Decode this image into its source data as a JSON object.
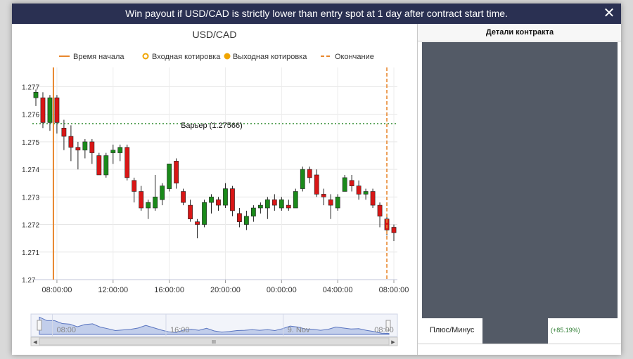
{
  "modal": {
    "title": "Win payout if USD/CAD is strictly lower than entry spot at 1 day after contract start time.",
    "close_glyph": "✕"
  },
  "chart_data": {
    "type": "candlestick",
    "title": "USD/CAD",
    "legend": [
      {
        "label": "Время начала",
        "style": "solid-line",
        "color": "#e8872e"
      },
      {
        "label": "Входная котировка",
        "style": "ring",
        "color": "#f0a500"
      },
      {
        "label": "Выходная котировка",
        "style": "dot",
        "color": "#f0a500"
      },
      {
        "label": "Окончание",
        "style": "dashed-line",
        "color": "#e8872e"
      }
    ],
    "y_ticks": [
      "1.277",
      "1.276",
      "1.275",
      "1.274",
      "1.273",
      "1.272",
      "1.271",
      "1.27"
    ],
    "y_tick_values": [
      1.277,
      1.276,
      1.275,
      1.274,
      1.273,
      1.272,
      1.271,
      1.27
    ],
    "ylim": [
      1.27,
      1.2777
    ],
    "x_ticks": [
      "08:00:00",
      "12:00:00",
      "16:00:00",
      "20:00:00",
      "00:00:00",
      "04:00:00",
      "08:00:00"
    ],
    "x_tick_positions": [
      3,
      11,
      19,
      27,
      35,
      43,
      51
    ],
    "candle_count": 52,
    "barrier": {
      "label": "Барьер (1.27566)",
      "value": 1.27566,
      "color": "#2e8b2e"
    },
    "start_line_index": 2.5,
    "end_line_index": 50,
    "colors": {
      "up": "#1a8a1a",
      "down": "#d91616"
    },
    "candles": [
      {
        "o": 1.2766,
        "h": 1.2769,
        "l": 1.2763,
        "c": 1.2768
      },
      {
        "o": 1.2766,
        "h": 1.2768,
        "l": 1.2755,
        "c": 1.2757
      },
      {
        "o": 1.2757,
        "h": 1.2767,
        "l": 1.2754,
        "c": 1.2766
      },
      {
        "o": 1.2766,
        "h": 1.2767,
        "l": 1.2753,
        "c": 1.2757
      },
      {
        "o": 1.2755,
        "h": 1.2758,
        "l": 1.2747,
        "c": 1.2752
      },
      {
        "o": 1.2752,
        "h": 1.2756,
        "l": 1.2743,
        "c": 1.2748
      },
      {
        "o": 1.2748,
        "h": 1.275,
        "l": 1.274,
        "c": 1.2747
      },
      {
        "o": 1.2747,
        "h": 1.2751,
        "l": 1.2744,
        "c": 1.275
      },
      {
        "o": 1.275,
        "h": 1.2751,
        "l": 1.2742,
        "c": 1.2746
      },
      {
        "o": 1.2745,
        "h": 1.2746,
        "l": 1.2738,
        "c": 1.2738
      },
      {
        "o": 1.2738,
        "h": 1.2746,
        "l": 1.2737,
        "c": 1.2745
      },
      {
        "o": 1.2746,
        "h": 1.2749,
        "l": 1.2742,
        "c": 1.2747
      },
      {
        "o": 1.2746,
        "h": 1.2749,
        "l": 1.2743,
        "c": 1.2748
      },
      {
        "o": 1.2748,
        "h": 1.2749,
        "l": 1.2736,
        "c": 1.2737
      },
      {
        "o": 1.2736,
        "h": 1.2737,
        "l": 1.2728,
        "c": 1.2732
      },
      {
        "o": 1.2732,
        "h": 1.2734,
        "l": 1.2725,
        "c": 1.2726
      },
      {
        "o": 1.2726,
        "h": 1.2729,
        "l": 1.2722,
        "c": 1.2728
      },
      {
        "o": 1.2726,
        "h": 1.2738,
        "l": 1.2725,
        "c": 1.273
      },
      {
        "o": 1.2729,
        "h": 1.2735,
        "l": 1.2727,
        "c": 1.2734
      },
      {
        "o": 1.2733,
        "h": 1.2742,
        "l": 1.2732,
        "c": 1.2742
      },
      {
        "o": 1.2743,
        "h": 1.2744,
        "l": 1.2733,
        "c": 1.2735
      },
      {
        "o": 1.2732,
        "h": 1.2733,
        "l": 1.2727,
        "c": 1.2728
      },
      {
        "o": 1.2727,
        "h": 1.2729,
        "l": 1.2721,
        "c": 1.2722
      },
      {
        "o": 1.2721,
        "h": 1.2722,
        "l": 1.2715,
        "c": 1.272
      },
      {
        "o": 1.272,
        "h": 1.2729,
        "l": 1.2719,
        "c": 1.2728
      },
      {
        "o": 1.2728,
        "h": 1.2731,
        "l": 1.2724,
        "c": 1.273
      },
      {
        "o": 1.2729,
        "h": 1.273,
        "l": 1.2725,
        "c": 1.2727
      },
      {
        "o": 1.2727,
        "h": 1.2735,
        "l": 1.2726,
        "c": 1.2733
      },
      {
        "o": 1.2733,
        "h": 1.2734,
        "l": 1.2723,
        "c": 1.2725
      },
      {
        "o": 1.2724,
        "h": 1.2726,
        "l": 1.2719,
        "c": 1.2721
      },
      {
        "o": 1.272,
        "h": 1.2725,
        "l": 1.2718,
        "c": 1.2723
      },
      {
        "o": 1.2723,
        "h": 1.2727,
        "l": 1.2721,
        "c": 1.2726
      },
      {
        "o": 1.2726,
        "h": 1.2728,
        "l": 1.2724,
        "c": 1.2727
      },
      {
        "o": 1.2726,
        "h": 1.273,
        "l": 1.2722,
        "c": 1.2729
      },
      {
        "o": 1.2729,
        "h": 1.2731,
        "l": 1.2725,
        "c": 1.2727
      },
      {
        "o": 1.2726,
        "h": 1.273,
        "l": 1.2725,
        "c": 1.2729
      },
      {
        "o": 1.2727,
        "h": 1.2729,
        "l": 1.2725,
        "c": 1.2726
      },
      {
        "o": 1.2726,
        "h": 1.2733,
        "l": 1.2726,
        "c": 1.2732
      },
      {
        "o": 1.2733,
        "h": 1.2741,
        "l": 1.2732,
        "c": 1.274
      },
      {
        "o": 1.274,
        "h": 1.2741,
        "l": 1.2735,
        "c": 1.2737
      },
      {
        "o": 1.2738,
        "h": 1.274,
        "l": 1.273,
        "c": 1.2731
      },
      {
        "o": 1.2731,
        "h": 1.2733,
        "l": 1.2727,
        "c": 1.273
      },
      {
        "o": 1.2729,
        "h": 1.2731,
        "l": 1.2722,
        "c": 1.2727
      },
      {
        "o": 1.2726,
        "h": 1.2731,
        "l": 1.2725,
        "c": 1.273
      },
      {
        "o": 1.2732,
        "h": 1.2738,
        "l": 1.2732,
        "c": 1.2737
      },
      {
        "o": 1.2736,
        "h": 1.2738,
        "l": 1.2732,
        "c": 1.2734
      },
      {
        "o": 1.2734,
        "h": 1.2736,
        "l": 1.2729,
        "c": 1.2731
      },
      {
        "o": 1.2731,
        "h": 1.2733,
        "l": 1.2729,
        "c": 1.2732
      },
      {
        "o": 1.2732,
        "h": 1.2733,
        "l": 1.2726,
        "c": 1.2727
      },
      {
        "o": 1.2727,
        "h": 1.2728,
        "l": 1.2719,
        "c": 1.2723
      },
      {
        "o": 1.2722,
        "h": 1.2723,
        "l": 1.2716,
        "c": 1.2718
      },
      {
        "o": 1.2719,
        "h": 1.272,
        "l": 1.2714,
        "c": 1.2717
      }
    ]
  },
  "navigator": {
    "labels": [
      "08:00",
      "16:00",
      "9. Nov",
      "08:00"
    ],
    "label_positions": [
      0.07,
      0.38,
      0.7,
      0.99
    ],
    "series": [
      1.2768,
      1.2757,
      1.2757,
      1.2748,
      1.2746,
      1.2738,
      1.2745,
      1.2747,
      1.2737,
      1.2732,
      1.2726,
      1.2728,
      1.273,
      1.2734,
      1.2742,
      1.2735,
      1.2728,
      1.2722,
      1.272,
      1.2728,
      1.273,
      1.2727,
      1.2733,
      1.2725,
      1.2721,
      1.2723,
      1.2726,
      1.2727,
      1.2729,
      1.2727,
      1.2729,
      1.2726,
      1.2732,
      1.274,
      1.2737,
      1.2731,
      1.273,
      1.2727,
      1.273,
      1.2737,
      1.2734,
      1.2731,
      1.2732,
      1.2727,
      1.2723,
      1.2718,
      1.2717
    ],
    "scroll_glyph": "III",
    "left_arrow": "◀",
    "right_arrow": "▶"
  },
  "side": {
    "header": "Детали контракта",
    "pl_label": "Плюс/Минус",
    "pl_value": "(+85.19%)"
  }
}
